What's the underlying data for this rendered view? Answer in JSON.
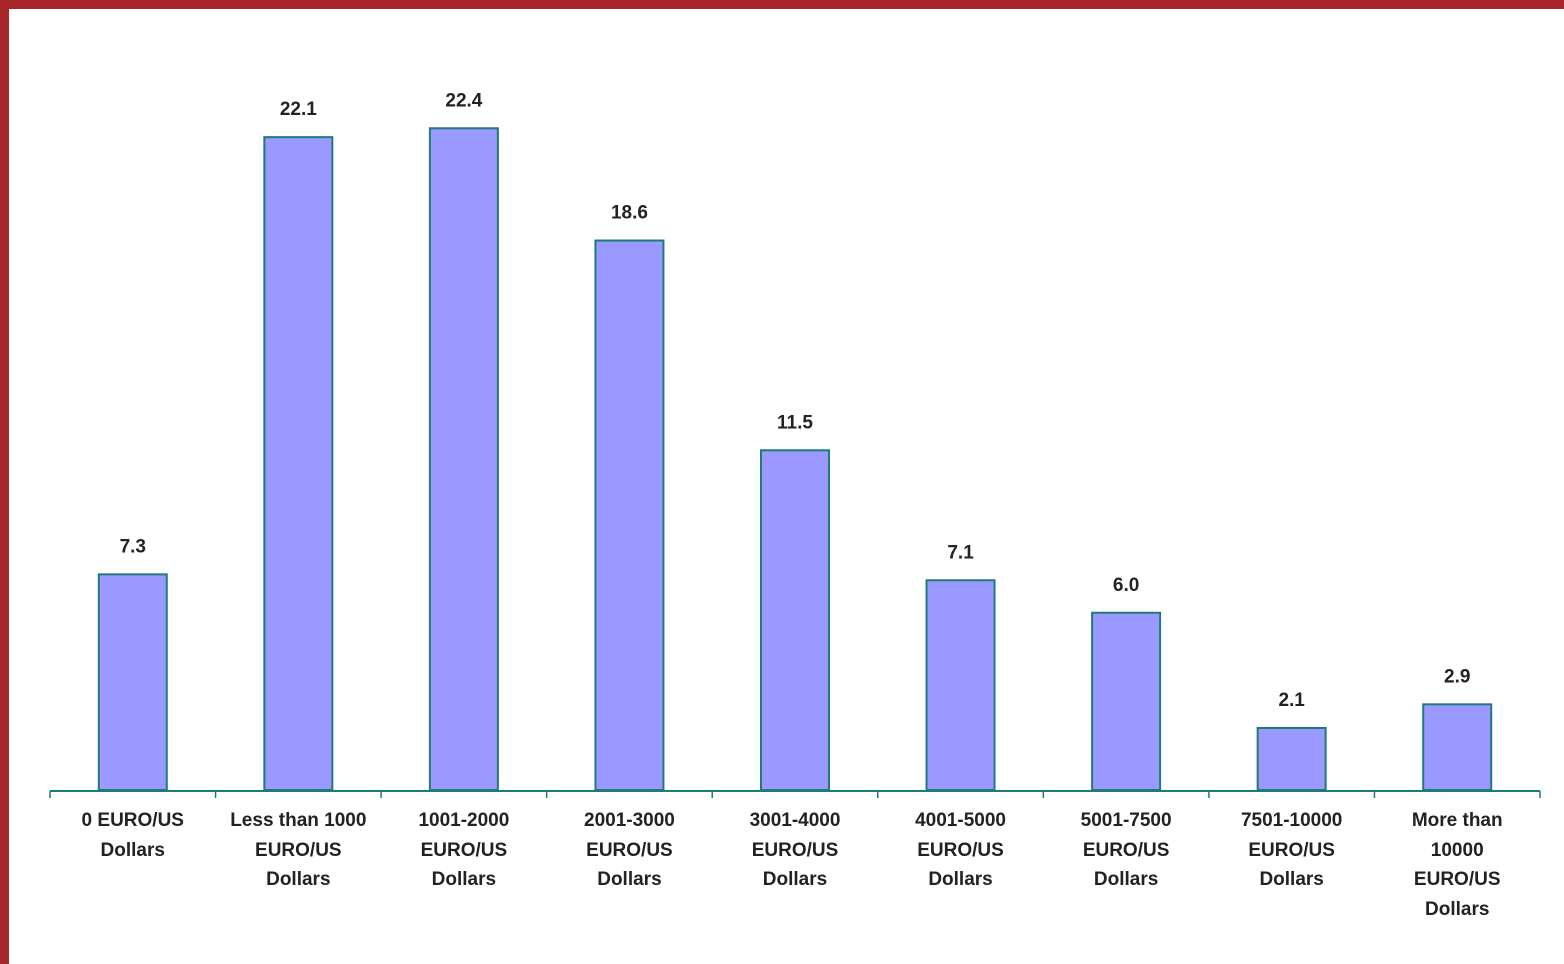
{
  "chart_data": {
    "type": "bar",
    "categories": [
      "0 EURO/US\nDollars",
      "Less than 1000\nEURO/US\nDollars",
      "1001-2000\nEURO/US\nDollars",
      "2001-3000\nEURO/US\nDollars",
      "3001-4000\nEURO/US\nDollars",
      "4001-5000\nEURO/US\nDollars",
      "5001-7500\nEURO/US\nDollars",
      "7501-10000\nEURO/US\nDollars",
      "More than\n10000\nEURO/US\nDollars"
    ],
    "values": [
      7.3,
      22.1,
      22.4,
      18.6,
      11.5,
      7.1,
      6.0,
      2.1,
      2.9
    ],
    "value_labels": [
      "7.3",
      "22.1",
      "22.4",
      "18.6",
      "11.5",
      "7.1",
      "6.0",
      "2.1",
      "2.9"
    ],
    "color": "#9999ff",
    "ylim": [
      0,
      24
    ]
  }
}
